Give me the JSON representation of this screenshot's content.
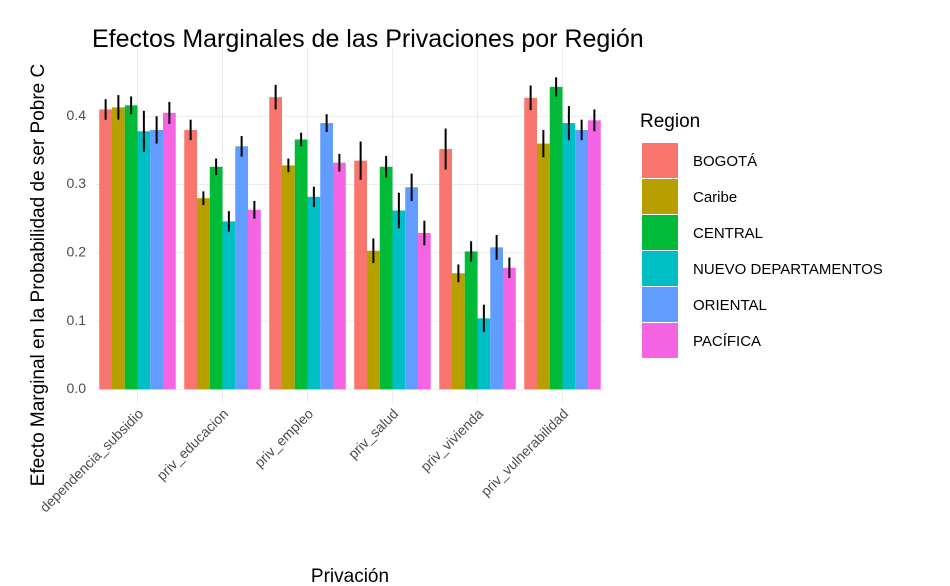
{
  "chart_data": {
    "type": "bar",
    "title": "Efectos Marginales de las Privaciones por Región",
    "x_label": "Privación",
    "y_label": "Efecto Marginal en la Probabilidad de ser Pobre C",
    "legend_title": "Region",
    "categories": [
      "dependencia_subsidio",
      "priv_educacion",
      "priv_empleo",
      "priv_salud",
      "priv_vivienda",
      "priv_vulnerabilidad"
    ],
    "series": [
      {
        "name": "BOGOTÁ",
        "color": "#F8766D",
        "values": [
          0.41,
          0.38,
          0.428,
          0.335,
          0.352,
          0.427
        ],
        "errors": [
          0.015,
          0.015,
          0.018,
          0.028,
          0.03,
          0.018
        ]
      },
      {
        "name": "Caribe",
        "color": "#B79F00",
        "values": [
          0.413,
          0.28,
          0.328,
          0.203,
          0.17,
          0.36
        ],
        "errors": [
          0.018,
          0.01,
          0.01,
          0.018,
          0.013,
          0.02
        ]
      },
      {
        "name": "CENTRAL",
        "color": "#00BA38",
        "values": [
          0.416,
          0.326,
          0.366,
          0.326,
          0.202,
          0.443
        ],
        "errors": [
          0.013,
          0.012,
          0.01,
          0.016,
          0.015,
          0.014
        ]
      },
      {
        "name": "NUEVO DEPARTAMENTOS",
        "color": "#00BFC4",
        "values": [
          0.378,
          0.246,
          0.282,
          0.262,
          0.104,
          0.39
        ],
        "errors": [
          0.03,
          0.015,
          0.015,
          0.026,
          0.02,
          0.025
        ]
      },
      {
        "name": "ORIENTAL",
        "color": "#619CFF",
        "values": [
          0.38,
          0.356,
          0.39,
          0.296,
          0.208,
          0.38
        ],
        "errors": [
          0.02,
          0.015,
          0.013,
          0.02,
          0.018,
          0.015
        ]
      },
      {
        "name": "PACÍFICA",
        "color": "#F564E3",
        "values": [
          0.405,
          0.263,
          0.332,
          0.229,
          0.178,
          0.394
        ],
        "errors": [
          0.016,
          0.013,
          0.013,
          0.018,
          0.015,
          0.016
        ]
      }
    ],
    "ylim": [
      -0.02,
      0.5
    ],
    "yticks": [
      {
        "value": 0,
        "label": "0.0"
      },
      0.1,
      0.2,
      0.3,
      0.4
    ],
    "grid": true
  }
}
